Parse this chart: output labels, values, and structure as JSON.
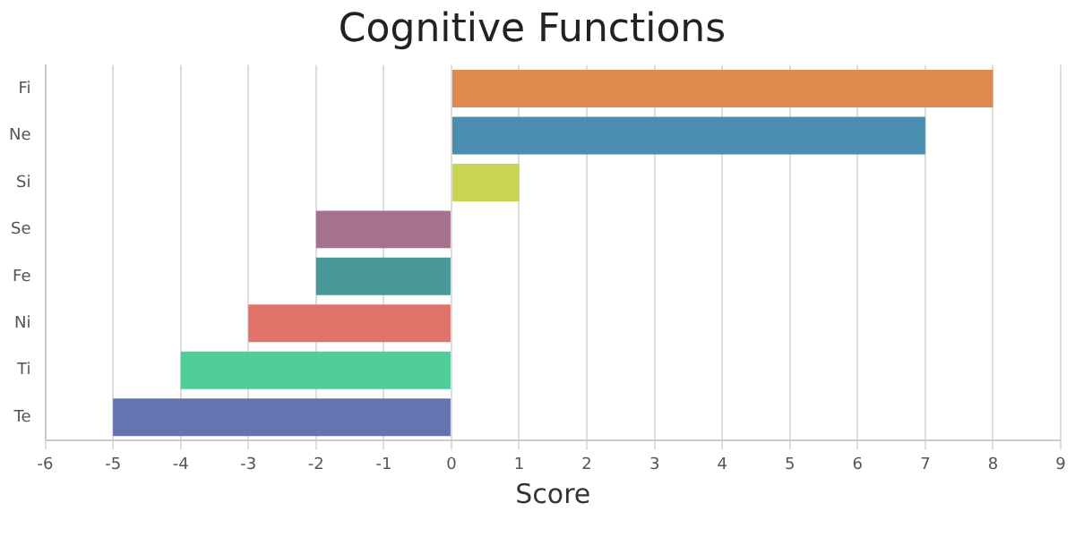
{
  "chart_data": {
    "type": "bar",
    "orientation": "horizontal",
    "title": "Cognitive Functions",
    "xlabel": "Score",
    "categories": [
      "Fi",
      "Ne",
      "Si",
      "Se",
      "Fe",
      "Ni",
      "Ti",
      "Te"
    ],
    "values": [
      8,
      7,
      1,
      -2,
      -2,
      -3,
      -4,
      -5
    ],
    "colors": [
      "#e0894e",
      "#4a8eaf",
      "#c9d452",
      "#a6718f",
      "#4a999a",
      "#e0726a",
      "#4fcd9b",
      "#6574b1"
    ],
    "xlim": [
      -6,
      9
    ],
    "xticks": [
      -6,
      -5,
      -4,
      -3,
      -2,
      -1,
      0,
      1,
      2,
      3,
      4,
      5,
      6,
      7,
      8,
      9
    ],
    "grid": "x",
    "legend": false
  }
}
